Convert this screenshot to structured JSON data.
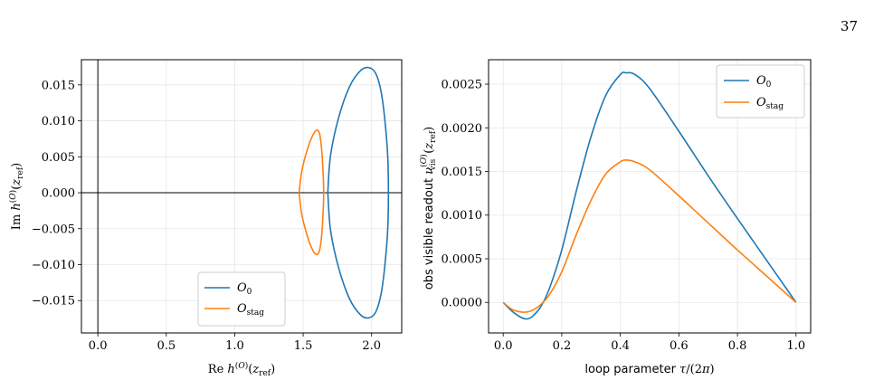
{
  "page_number": "37",
  "colors": {
    "O0": "#1f77b4",
    "Ostag": "#ff7f0e",
    "grid": "#e6e6e6"
  },
  "chart_data": [
    {
      "type": "line",
      "title": "",
      "xlabel": "Re h^(O)(z_ref)",
      "ylabel": "Im h^(O)(z_ref)",
      "xlim": [
        -0.12,
        2.22
      ],
      "ylim": [
        -0.0195,
        0.0185
      ],
      "xticks": [
        0.0,
        0.5,
        1.0,
        1.5,
        2.0
      ],
      "xtick_labels": [
        "0.0",
        "0.5",
        "1.0",
        "1.5",
        "2.0"
      ],
      "yticks": [
        -0.015,
        -0.01,
        -0.005,
        0.0,
        0.005,
        0.01,
        0.015
      ],
      "ytick_labels": [
        "−0.015",
        "−0.010",
        "−0.005",
        "0.000",
        "0.005",
        "0.010",
        "0.015"
      ],
      "grid": true,
      "legend": "lower-center",
      "reference_lines": {
        "x": 0,
        "y": 0
      },
      "series": [
        {
          "name": "O_0",
          "color_key": "O0",
          "x": [
            1.68,
            1.7,
            1.76,
            1.84,
            1.92,
            1.98,
            2.03,
            2.07,
            2.1,
            2.12,
            2.12,
            2.1,
            2.07,
            2.03,
            1.98,
            1.92,
            1.84,
            1.76,
            1.7,
            1.68
          ],
          "y": [
            0.0,
            0.0052,
            0.0105,
            0.0148,
            0.017,
            0.0174,
            0.0166,
            0.014,
            0.0095,
            0.004,
            -0.004,
            -0.0095,
            -0.014,
            -0.0166,
            -0.0174,
            -0.017,
            -0.0148,
            -0.0105,
            -0.0052,
            0.0
          ]
        },
        {
          "name": "O_stag",
          "color_key": "Ostag",
          "x": [
            1.47,
            1.49,
            1.53,
            1.57,
            1.6,
            1.62,
            1.635,
            1.645,
            1.65,
            1.645,
            1.635,
            1.62,
            1.6,
            1.57,
            1.53,
            1.49,
            1.47
          ],
          "y": [
            0.0,
            0.003,
            0.006,
            0.008,
            0.0087,
            0.0082,
            0.006,
            0.003,
            0.0,
            -0.003,
            -0.006,
            -0.008,
            -0.0086,
            -0.008,
            -0.006,
            -0.003,
            0.0
          ]
        }
      ]
    },
    {
      "type": "line",
      "title": "",
      "xlabel": "loop parameter τ/(2π)",
      "ylabel_prefix": "obs visible readout ",
      "ylabel_math": "ν_vis^(O)(z_ref)",
      "xlim": [
        -0.05,
        1.05
      ],
      "ylim": [
        -0.00035,
        0.00278
      ],
      "xticks": [
        0.0,
        0.2,
        0.4,
        0.6,
        0.8,
        1.0
      ],
      "xtick_labels": [
        "0.0",
        "0.2",
        "0.4",
        "0.6",
        "0.8",
        "1.0"
      ],
      "yticks": [
        0.0,
        0.0005,
        0.001,
        0.0015,
        0.002,
        0.0025
      ],
      "ytick_labels": [
        "0.0000",
        "0.0005",
        "0.0010",
        "0.0015",
        "0.0020",
        "0.0025"
      ],
      "grid": true,
      "legend": "upper-right",
      "series": [
        {
          "name": "O_0",
          "color_key": "O0",
          "x": [
            0.0,
            0.03,
            0.06,
            0.08,
            0.1,
            0.13,
            0.16,
            0.2,
            0.25,
            0.3,
            0.35,
            0.4,
            0.42,
            0.45,
            0.5,
            0.6,
            0.7,
            0.8,
            0.9,
            1.0
          ],
          "y": [
            0.0,
            -0.0001,
            -0.00017,
            -0.00019,
            -0.00016,
            -4e-05,
            0.00018,
            0.0006,
            0.00128,
            0.0019,
            0.00237,
            0.00261,
            0.00263,
            0.00261,
            0.00245,
            0.00196,
            0.00145,
            0.00096,
            0.00048,
            0.0
          ]
        },
        {
          "name": "O_stag",
          "color_key": "Ostag",
          "x": [
            0.0,
            0.03,
            0.06,
            0.08,
            0.1,
            0.13,
            0.16,
            0.2,
            0.25,
            0.3,
            0.35,
            0.4,
            0.42,
            0.45,
            0.5,
            0.6,
            0.7,
            0.8,
            0.9,
            1.0
          ],
          "y": [
            0.0,
            -8e-05,
            -0.00011,
            -0.00011,
            -9e-05,
            -2e-05,
            0.0001,
            0.00035,
            0.00078,
            0.00117,
            0.00147,
            0.00161,
            0.00163,
            0.00161,
            0.00152,
            0.00122,
            0.00091,
            0.0006,
            0.0003,
            0.0
          ]
        }
      ]
    }
  ]
}
